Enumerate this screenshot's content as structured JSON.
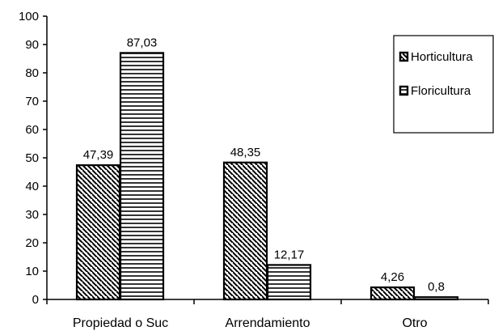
{
  "chart_data": {
    "type": "bar",
    "title": "",
    "xlabel": "",
    "ylabel": "",
    "ylim": [
      0,
      100
    ],
    "y_ticks": [
      "0",
      "10",
      "20",
      "30",
      "40",
      "50",
      "60",
      "70",
      "80",
      "90",
      "100"
    ],
    "categories": [
      "Propiedad o Suc",
      "Arrendamiento",
      "Otro"
    ],
    "series": [
      {
        "name": "Horticultura",
        "values": [
          47.39,
          48.35,
          4.26
        ],
        "labels": [
          "47,39",
          "48,35",
          "4,26"
        ],
        "pattern": "diagonal-hatch"
      },
      {
        "name": "Floricultura",
        "values": [
          87.03,
          12.17,
          0.8
        ],
        "labels": [
          "87,03",
          "12,17",
          "0,8"
        ],
        "pattern": "horizontal-stripes"
      }
    ],
    "legend_position": "top-right",
    "grid": false,
    "colors": {
      "stroke": "#000000",
      "background": "#ffffff"
    }
  }
}
